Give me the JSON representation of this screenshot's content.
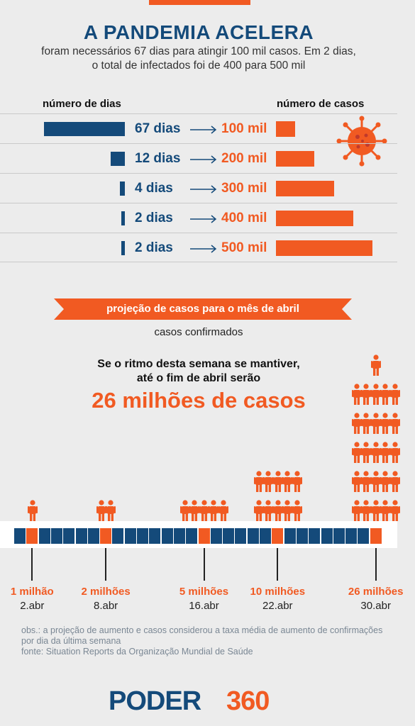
{
  "header": {
    "title": "A PANDEMIA ACELERA",
    "subtitle_line1": "foram necessários 67 dias para atingir 100 mil casos. Em 2 dias,",
    "subtitle_line2": "o total de infectados foi de 400 para 500 mil"
  },
  "table": {
    "days_header": "número de dias",
    "cases_header": "número de casos",
    "rows": [
      {
        "days": 67,
        "days_label": "67 dias",
        "cases": 100000,
        "cases_label": "100 mil"
      },
      {
        "days": 12,
        "days_label": "12 dias",
        "cases": 200000,
        "cases_label": "200 mil"
      },
      {
        "days": 4,
        "days_label": "4 dias",
        "cases": 300000,
        "cases_label": "300 mil"
      },
      {
        "days": 2,
        "days_label": "2 dias",
        "cases": 400000,
        "cases_label": "400 mil"
      },
      {
        "days": 2,
        "days_label": "2 dias",
        "cases": 500000,
        "cases_label": "500 mil"
      }
    ]
  },
  "projection": {
    "banner": "projeção de casos para o mês de abril",
    "label": "casos confirmados",
    "text_line1": "Se o ritmo desta semana se mantiver,",
    "text_line2": "até o fim de abril serão",
    "big": "26 milhões de casos"
  },
  "chart_data": [
    {
      "type": "bar",
      "categories": [
        "67 dias",
        "12 dias",
        "4 dias",
        "2 dias",
        "2 dias"
      ],
      "series": [
        {
          "values": [
            67,
            12,
            4,
            2,
            2
          ]
        },
        {
          "values": [
            100000,
            200000,
            300000,
            400000,
            500000
          ]
        }
      ]
    },
    {
      "type": "bar",
      "categories": [
        "2.abr",
        "8.abr",
        "16.abr",
        "22.abr",
        "30.abr"
      ],
      "values": [
        1000000,
        2000000,
        5000000,
        10000000,
        26000000
      ],
      "value_labels": [
        "1 milhão",
        "2 milhões",
        "5 milhões",
        "10 milhões",
        "26 milhões"
      ]
    }
  ],
  "timeline": {
    "cell_count": 30,
    "highlight_days": [
      2,
      8,
      16,
      22,
      30
    ],
    "milestones": [
      {
        "value": "1 milhão",
        "date": "2.abr",
        "people": 1
      },
      {
        "value": "2 milhões",
        "date": "8.abr",
        "people": 2
      },
      {
        "value": "5 milhões",
        "date": "16.abr",
        "people": 5
      },
      {
        "value": "10 milhões",
        "date": "22.abr",
        "people": 10
      },
      {
        "value": "26 milhões",
        "date": "30.abr",
        "people": 26
      }
    ]
  },
  "notes": {
    "obs": "obs.: a projeção de aumento e casos considerou a taxa média de aumento de confirmações por dia da última semana",
    "source": "fonte: Situation Reports da Organização Mundial de Saúde"
  },
  "logo": {
    "part1": "PODER",
    "part2": "360"
  },
  "colors": {
    "navy": "#144a7a",
    "orange": "#f15a22",
    "background": "#ececec"
  }
}
